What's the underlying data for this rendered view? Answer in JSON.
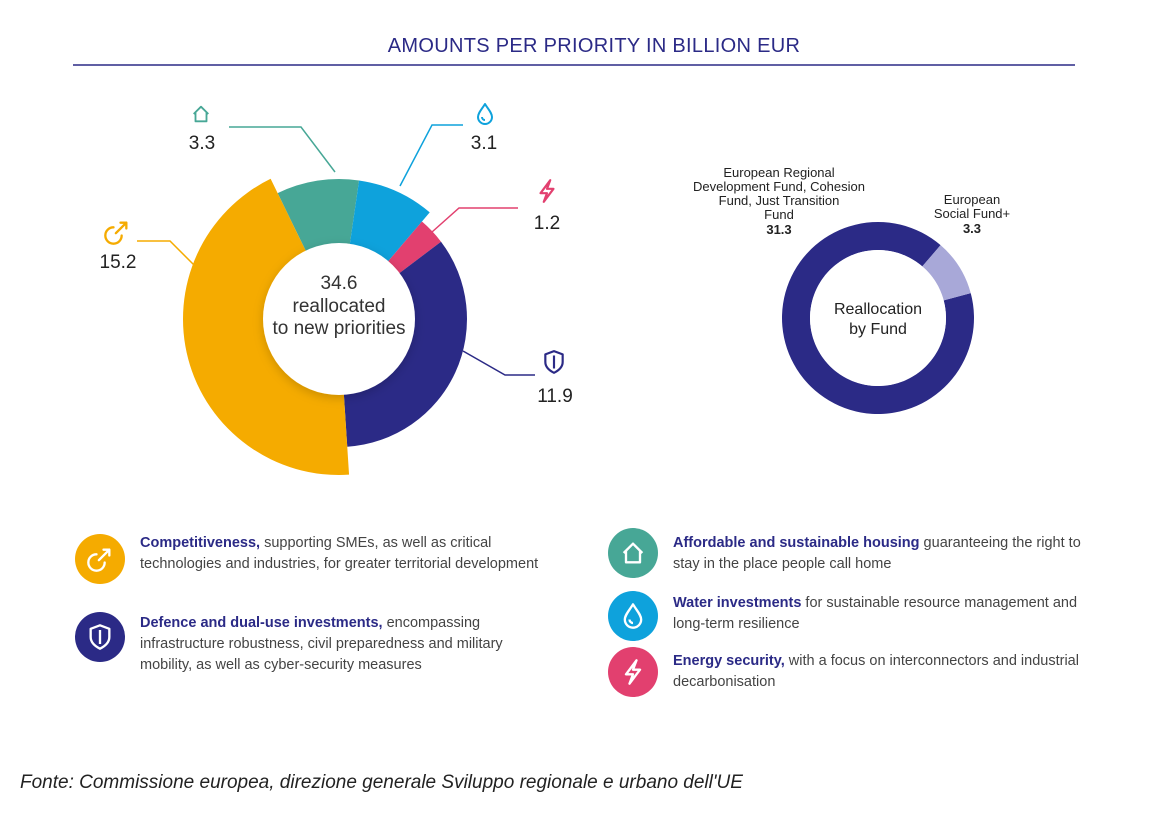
{
  "colors": {
    "navy": "#2b2a86",
    "orange": "#f5ab00",
    "teal": "#47a796",
    "blue": "#0ea2dc",
    "pink": "#e2406f",
    "lavender": "#a8a8d8"
  },
  "chart_data": [
    {
      "type": "pie",
      "subtype": "donut",
      "title": "AMOUNTS PER PRIORITY IN BILLION EUR",
      "center_label": {
        "value": "34.6",
        "line1": "reallocated",
        "line2": "to new priorities"
      },
      "categories": [
        "Affordable and sustainable housing",
        "Water investments",
        "Energy security",
        "Defence and dual-use investments",
        "Competitiveness"
      ],
      "values": [
        3.3,
        3.1,
        1.2,
        11.9,
        15.2
      ],
      "value_labels": [
        "3.3",
        "3.1",
        "1.2",
        "11.9",
        "15.2"
      ],
      "icons": [
        "house-icon",
        "water-drop-icon",
        "lightning-icon",
        "shield-icon",
        "growth-icon"
      ],
      "colors": [
        "#47a796",
        "#0ea2dc",
        "#e2406f",
        "#2b2a86",
        "#f5ab00"
      ]
    },
    {
      "type": "pie",
      "subtype": "donut",
      "center_label": {
        "line1": "Reallocation",
        "line2": "by Fund"
      },
      "categories": [
        "European Regional Development Fund, Cohesion Fund, Just Transition Fund",
        "European Social Fund+"
      ],
      "label_lines": [
        [
          "European Regional",
          "Development Fund, Cohesion",
          "Fund, Just Transition",
          "Fund"
        ],
        [
          "European",
          "Social Fund+"
        ]
      ],
      "values": [
        31.3,
        3.3
      ],
      "value_labels": [
        "31.3",
        "3.3"
      ],
      "colors": [
        "#2b2a86",
        "#a8a8d8"
      ]
    }
  ],
  "legend": [
    {
      "icon": "growth-icon",
      "color": "#f5ab00",
      "bold": "Competitiveness,",
      "text": " supporting SMEs, as well as critical technologies and industries, for greater territorial development"
    },
    {
      "icon": "shield-icon",
      "color": "#2b2a86",
      "bold": "Defence and dual-use investments,",
      "text": " encompassing infrastructure robustness, civil preparedness and military mobility, as well as cyber-security measures"
    },
    {
      "icon": "house-icon",
      "color": "#47a796",
      "bold": "Affordable and sustainable housing",
      "text": " guaranteeing the right to stay in the place people call home"
    },
    {
      "icon": "water-drop-icon",
      "color": "#0ea2dc",
      "bold": "Water investments",
      "text": " for sustainable resource management and long-term resilience"
    },
    {
      "icon": "lightning-icon",
      "color": "#e2406f",
      "bold": "Energy security,",
      "text": " with a focus on interconnectors and industrial decarbonisation"
    }
  ],
  "source": "Fonte: Commissione europea, direzione generale Sviluppo regionale e urbano dell'UE"
}
